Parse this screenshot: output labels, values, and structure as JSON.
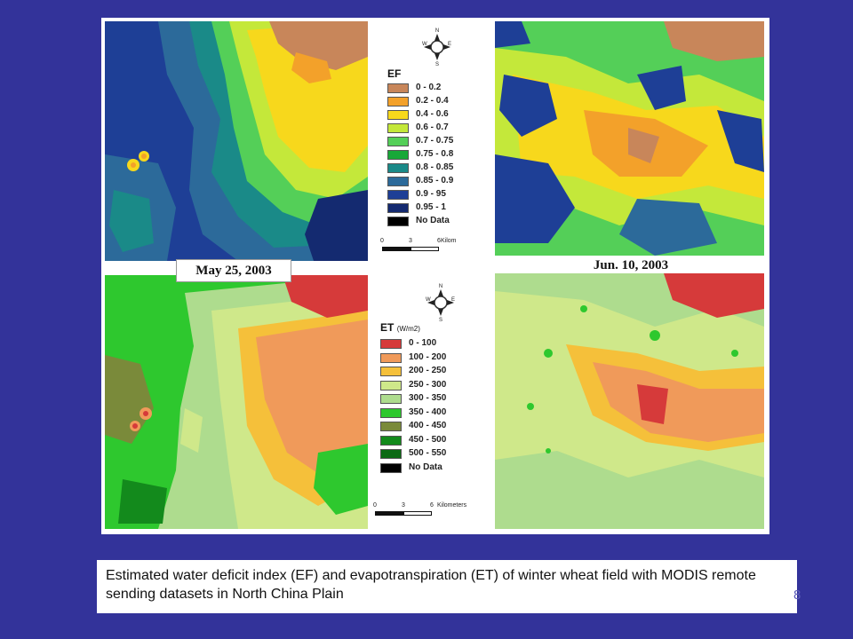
{
  "figure": {
    "panels": [
      {
        "id": "ef-may",
        "variable": "EF",
        "date_label": "May 25, 2003"
      },
      {
        "id": "ef-jun",
        "variable": "EF",
        "date_label": "Jun. 10, 2003"
      },
      {
        "id": "et-may",
        "variable": "ET",
        "date_label": ""
      },
      {
        "id": "et-jun",
        "variable": "ET",
        "date_label": ""
      }
    ],
    "ef_legend": {
      "title": "EF",
      "classes": [
        {
          "label": "0 - 0.2",
          "color": "#c8865a"
        },
        {
          "label": "0.2 - 0.4",
          "color": "#f3a12a"
        },
        {
          "label": "0.4 - 0.6",
          "color": "#f7d81c"
        },
        {
          "label": "0.6 - 0.7",
          "color": "#c4e83a"
        },
        {
          "label": "0.7 - 0.75",
          "color": "#54cf58"
        },
        {
          "label": "0.75 - 0.8",
          "color": "#18a838"
        },
        {
          "label": "0.8 - 0.85",
          "color": "#1a8a88"
        },
        {
          "label": "0.85 - 0.9",
          "color": "#2c6a9a"
        },
        {
          "label": "0.9 - 95",
          "color": "#1e3f96"
        },
        {
          "label": "0.95 - 1",
          "color": "#142a70"
        },
        {
          "label": "No Data",
          "color": "#000000"
        }
      ],
      "scale": {
        "ticks": [
          "0",
          "3",
          "6"
        ],
        "unit": "Kilom"
      }
    },
    "et_legend": {
      "title": "ET",
      "title_unit": "(W/m2)",
      "classes": [
        {
          "label": "0 - 100",
          "color": "#d63a3a"
        },
        {
          "label": "100 - 200",
          "color": "#f09a5a"
        },
        {
          "label": "200 - 250",
          "color": "#f5c03a"
        },
        {
          "label": "250 - 300",
          "color": "#cfe88a"
        },
        {
          "label": "300 - 350",
          "color": "#aedc8e"
        },
        {
          "label": "350 - 400",
          "color": "#2ec82e"
        },
        {
          "label": "400 - 450",
          "color": "#7a8a3a"
        },
        {
          "label": "450 - 500",
          "color": "#138a1c"
        },
        {
          "label": "500 - 550",
          "color": "#0c6a14"
        },
        {
          "label": "No Data",
          "color": "#000000"
        }
      ],
      "scale": {
        "ticks": [
          "0",
          "3",
          "6"
        ],
        "unit": "Kilometers"
      }
    },
    "compass": {
      "n": "N",
      "s": "S",
      "e": "E",
      "w": "W"
    }
  },
  "caption": "Estimated water deficit index (EF) and evapotranspiration (ET) of winter wheat field with MODIS remote sending datasets in North China Plain",
  "slide_number": "8"
}
